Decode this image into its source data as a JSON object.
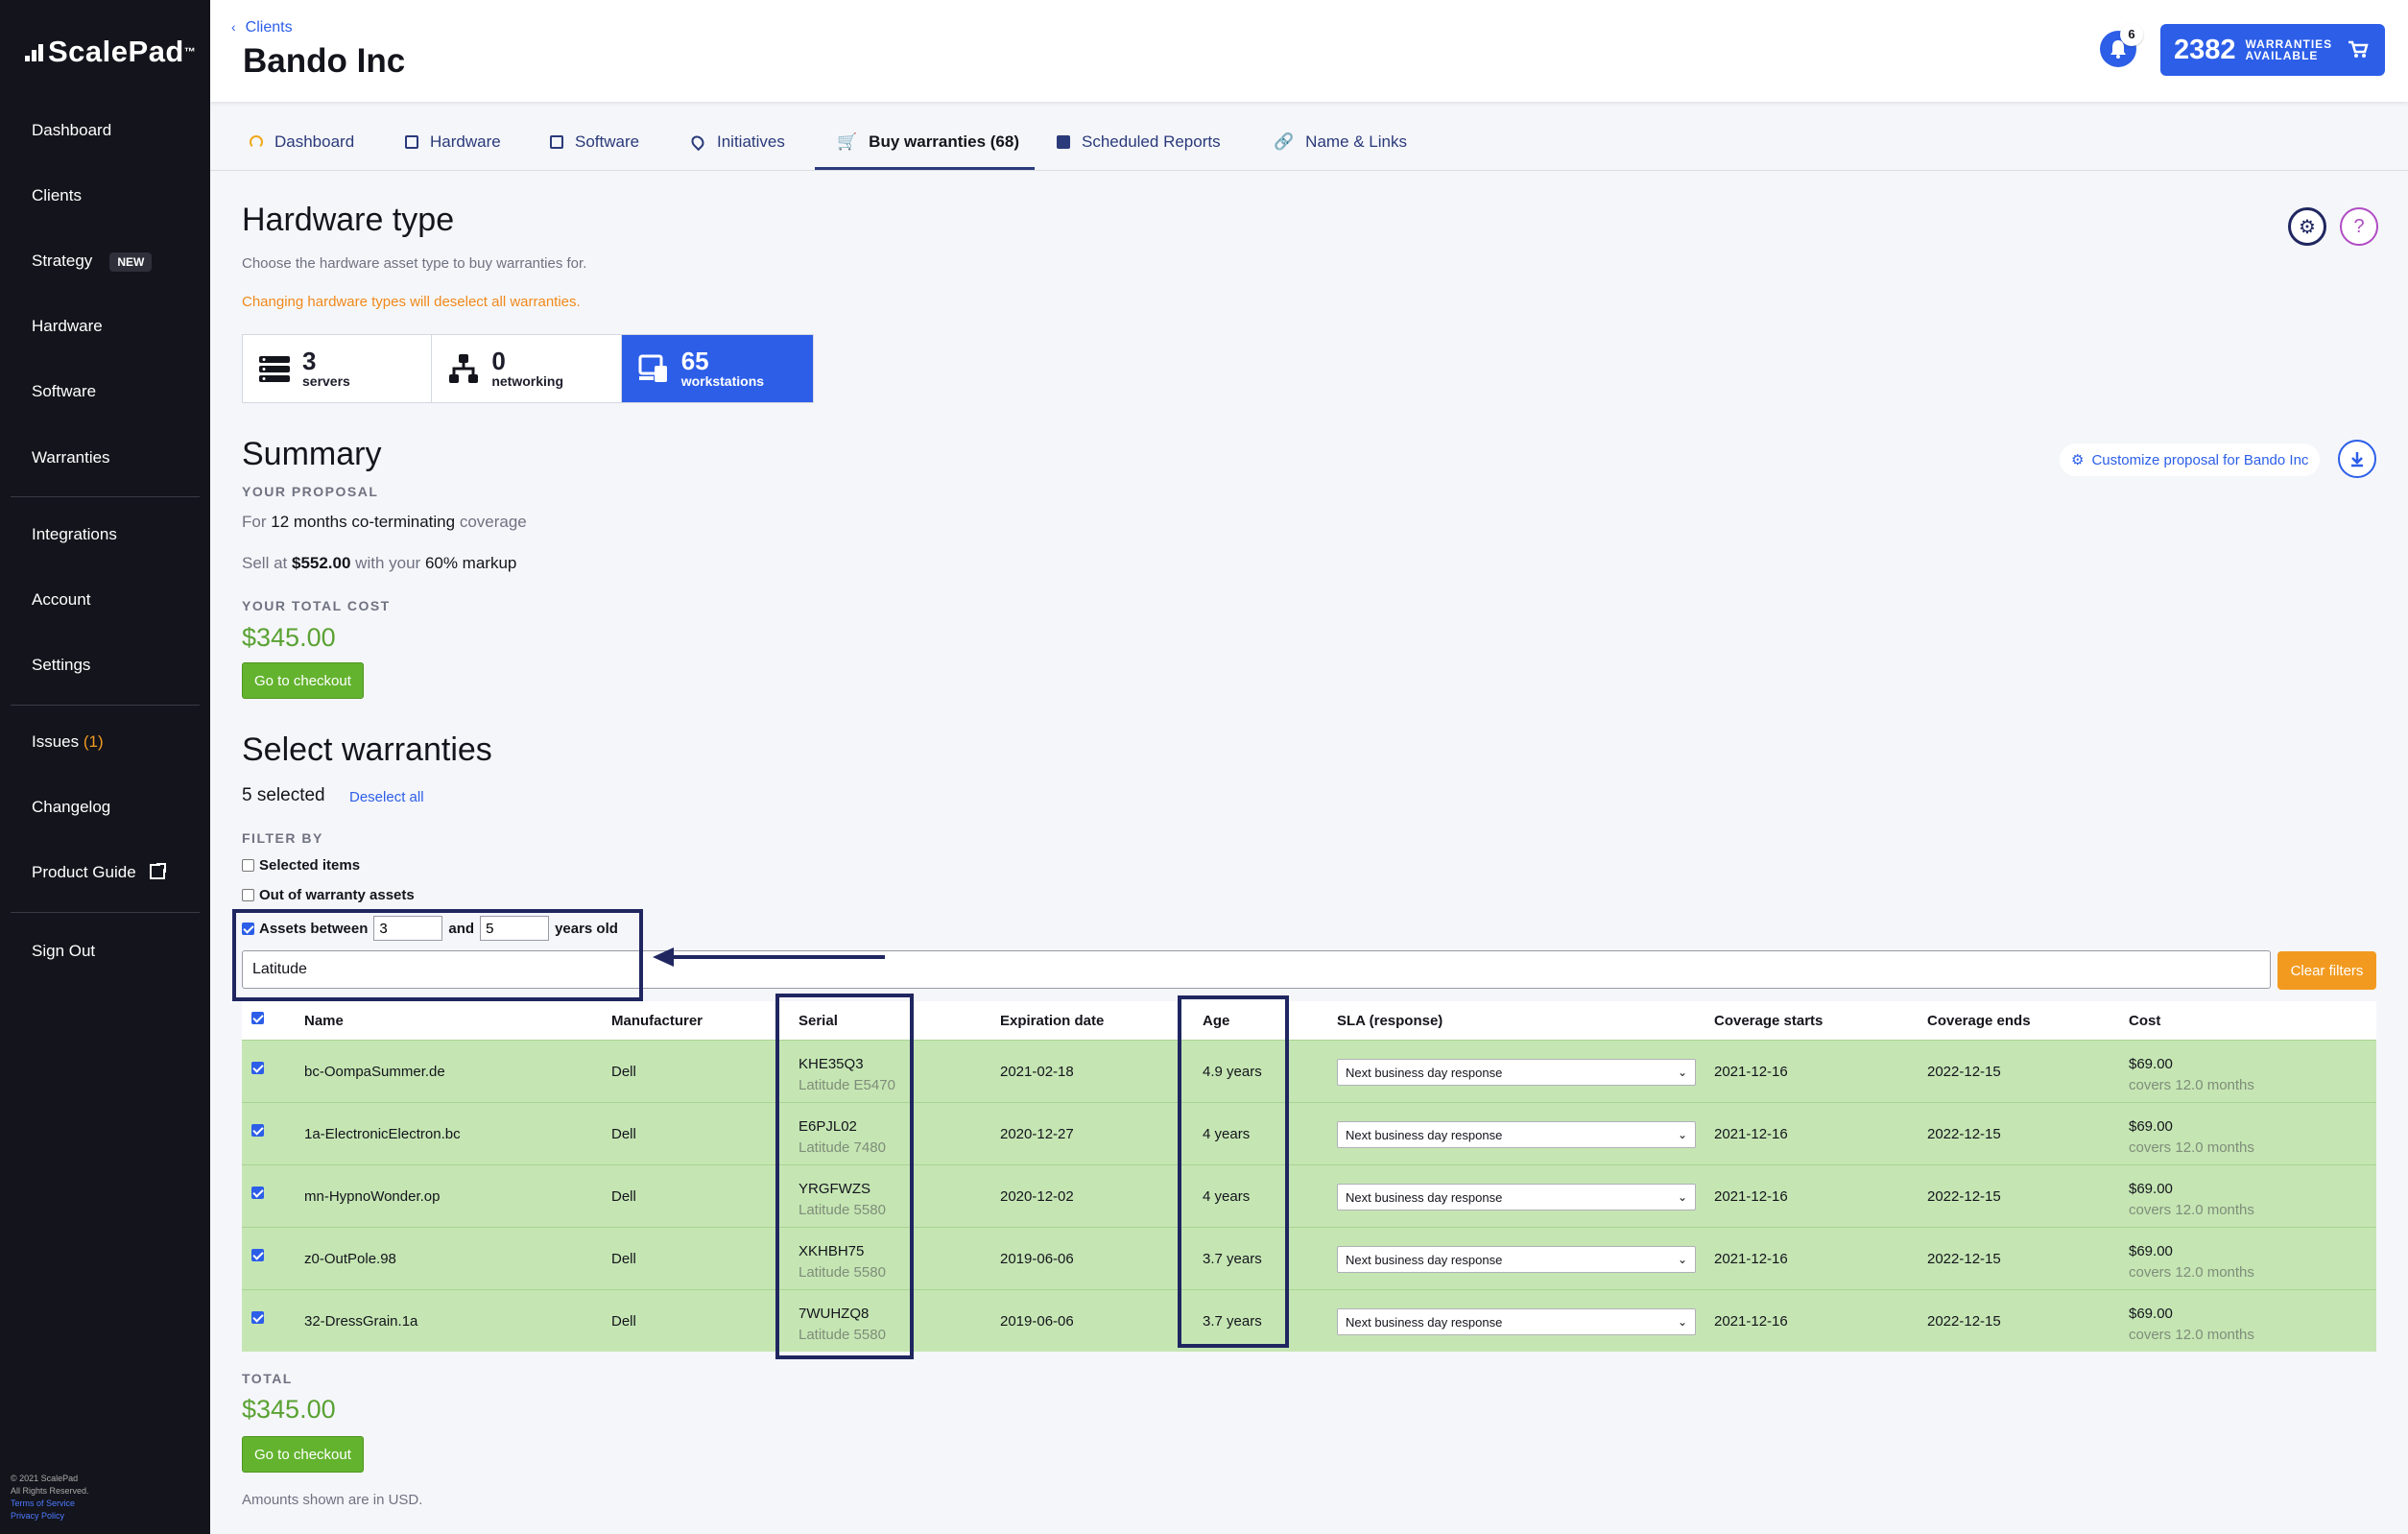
{
  "app": {
    "logo": "ScalePad",
    "logo_tm": "™"
  },
  "sidebar": {
    "items": [
      {
        "label": "Dashboard"
      },
      {
        "label": "Clients"
      },
      {
        "label": "Strategy",
        "badge": "NEW"
      },
      {
        "label": "Hardware"
      },
      {
        "label": "Software"
      },
      {
        "label": "Warranties"
      },
      {
        "label": "Integrations"
      },
      {
        "label": "Account"
      },
      {
        "label": "Settings"
      },
      {
        "label": "Issues",
        "count": "(1)"
      },
      {
        "label": "Changelog"
      },
      {
        "label": "Product Guide"
      },
      {
        "label": "Sign Out"
      }
    ],
    "footer": {
      "copyright": "© 2021 ScalePad",
      "rights": "All Rights Reserved.",
      "terms": "Terms of Service",
      "privacy": "Privacy Policy"
    }
  },
  "header": {
    "breadcrumb": "Clients",
    "title": "Bando Inc",
    "notifications": "6",
    "warranties_count": "2382",
    "warranties_label_1": "WARRANTIES",
    "warranties_label_2": "AVAILABLE"
  },
  "tabs": [
    {
      "label": "Dashboard",
      "icon": "gauge-icon"
    },
    {
      "label": "Hardware",
      "icon": "hardware-icon"
    },
    {
      "label": "Software",
      "icon": "window-icon"
    },
    {
      "label": "Initiatives",
      "icon": "pin-icon"
    },
    {
      "label": "Buy warranties (68)",
      "icon": "cart-icon",
      "active": true
    },
    {
      "label": "Scheduled Reports",
      "icon": "document-icon"
    },
    {
      "label": "Name & Links",
      "icon": "link-icon"
    }
  ],
  "hardware_type": {
    "title": "Hardware type",
    "description": "Choose the hardware asset type to buy warranties for.",
    "warning": "Changing hardware types will deselect all warranties.",
    "cards": [
      {
        "count": "3",
        "label": "servers"
      },
      {
        "count": "0",
        "label": "networking"
      },
      {
        "count": "65",
        "label": "workstations",
        "active": true
      }
    ]
  },
  "summary": {
    "title": "Summary",
    "proposal_label": "YOUR PROPOSAL",
    "for_text": "For",
    "months": "12 months",
    "coterm": "co-terminating",
    "coverage": "coverage",
    "sell_at": "Sell at",
    "sell_price": "$552.00",
    "with_your": "with your",
    "markup": "60% markup",
    "total_cost_label": "YOUR TOTAL COST",
    "total_cost": "$345.00",
    "checkout": "Go to checkout",
    "customize": "Customize proposal for Bando Inc"
  },
  "select": {
    "title": "Select warranties",
    "selected": "5 selected",
    "deselect": "Deselect all",
    "filter_label": "FILTER BY",
    "filter_selected": "Selected items",
    "filter_out": "Out of warranty assets",
    "filter_between": "Assets between",
    "min_age": "3",
    "and": "and",
    "max_age": "5",
    "years_old": "years old",
    "search_value": "Latitude",
    "clear_filters": "Clear filters"
  },
  "table": {
    "headers": [
      "Name",
      "Manufacturer",
      "Serial",
      "Expiration date",
      "Age",
      "SLA (response)",
      "Coverage starts",
      "Coverage ends",
      "Cost"
    ],
    "rows": [
      {
        "name": "bc-OompaSummer.de",
        "manufacturer": "Dell",
        "serial": "KHE35Q3",
        "model": "Latitude E5470",
        "expiration": "2021-02-18",
        "age": "4.9 years",
        "sla": "Next business day response",
        "start": "2021-12-16",
        "end": "2022-12-15",
        "cost": "$69.00",
        "covers": "covers 12.0 months"
      },
      {
        "name": "1a-ElectronicElectron.bc",
        "manufacturer": "Dell",
        "serial": "E6PJL02",
        "model": "Latitude 7480",
        "expiration": "2020-12-27",
        "age": "4 years",
        "sla": "Next business day response",
        "start": "2021-12-16",
        "end": "2022-12-15",
        "cost": "$69.00",
        "covers": "covers 12.0 months"
      },
      {
        "name": "mn-HypnoWonder.op",
        "manufacturer": "Dell",
        "serial": "YRGFWZS",
        "model": "Latitude 5580",
        "expiration": "2020-12-02",
        "age": "4 years",
        "sla": "Next business day response",
        "start": "2021-12-16",
        "end": "2022-12-15",
        "cost": "$69.00",
        "covers": "covers 12.0 months"
      },
      {
        "name": "z0-OutPole.98",
        "manufacturer": "Dell",
        "serial": "XKHBH75",
        "model": "Latitude 5580",
        "expiration": "2019-06-06",
        "age": "3.7 years",
        "sla": "Next business day response",
        "start": "2021-12-16",
        "end": "2022-12-15",
        "cost": "$69.00",
        "covers": "covers 12.0 months"
      },
      {
        "name": "32-DressGrain.1a",
        "manufacturer": "Dell",
        "serial": "7WUHZQ8",
        "model": "Latitude 5580",
        "expiration": "2019-06-06",
        "age": "3.7 years",
        "sla": "Next business day response",
        "start": "2021-12-16",
        "end": "2022-12-15",
        "cost": "$69.00",
        "covers": "covers 12.0 months"
      }
    ]
  },
  "totals": {
    "label": "TOTAL",
    "amount": "$345.00",
    "checkout": "Go to checkout",
    "note": "Amounts shown are in USD."
  },
  "colors": {
    "accent": "#2c5ee8",
    "sidebar": "#14141c",
    "row_selected": "#c5e6b3",
    "price_green": "#5aa233",
    "warning": "#f0891a",
    "annotation": "#1f2660"
  }
}
